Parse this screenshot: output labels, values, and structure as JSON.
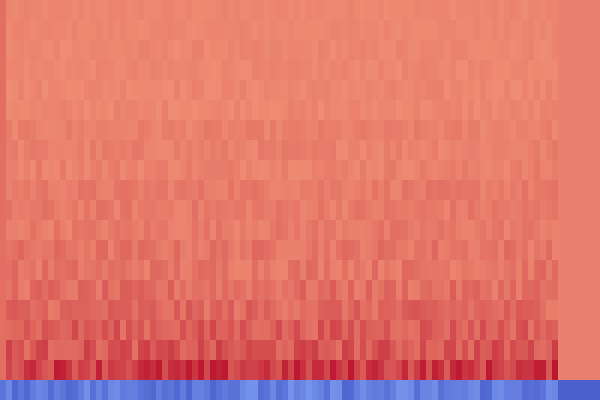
{
  "chart_data": {
    "type": "heatmap",
    "title": "",
    "xlabel": "",
    "ylabel": "",
    "colormap": "coolwarm",
    "colormap_stops": [
      "#3b4cc0",
      "#8db0fe",
      "#dddddd",
      "#f4987a",
      "#b40426"
    ],
    "value_range": [
      0,
      1
    ],
    "rows": 20,
    "cols": 100,
    "row_levels": [
      0.78,
      0.78,
      0.78,
      0.78,
      0.78,
      0.78,
      0.79,
      0.79,
      0.79,
      0.8,
      0.8,
      0.8,
      0.81,
      0.81,
      0.82,
      0.83,
      0.85,
      0.86,
      0.91,
      0.12
    ],
    "row_variation": [
      0.008,
      0.008,
      0.01,
      0.01,
      0.012,
      0.012,
      0.014,
      0.016,
      0.016,
      0.018,
      0.02,
      0.02,
      0.024,
      0.026,
      0.03,
      0.034,
      0.04,
      0.045,
      0.06,
      0.06
    ],
    "left_margin_level": 0.82,
    "right_margin_level": 0.79,
    "bottom_left_level": 0.1,
    "bottom_right_level": 0.05
  }
}
